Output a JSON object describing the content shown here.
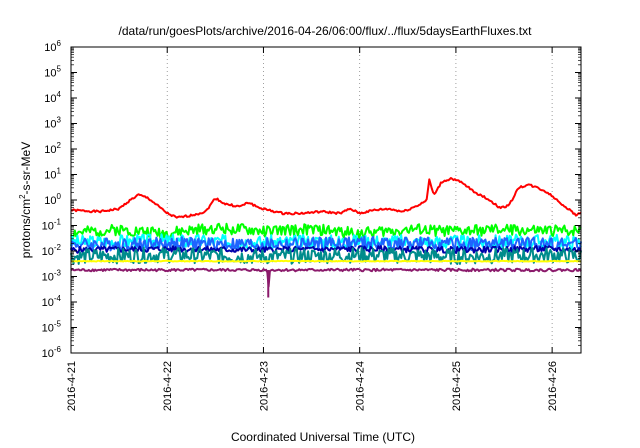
{
  "chart_data": {
    "type": "line",
    "title": "/data/run/goesPlots/archive/2016-04-26/06:00/flux/../flux/5daysEarthFluxes.txt",
    "xlabel": "Coordinated Universal Time (UTC)",
    "ylabel": "protons/cm²-s-sr-MeV",
    "ylabel_parts": {
      "pre": "protons/cm",
      "sup": "2",
      "post": "-s-sr-MeV"
    },
    "y_scale": "log",
    "ylim": [
      1e-06,
      1000000.0
    ],
    "xlim": [
      0,
      5.3
    ],
    "x_start_date": "2016-4-21",
    "grid": "vertical dotted lines at day boundaries",
    "y_ticks": [
      {
        "base": "10",
        "exp": "-6",
        "v": -6
      },
      {
        "base": "10",
        "exp": "-5",
        "v": -5
      },
      {
        "base": "10",
        "exp": "-4",
        "v": -4
      },
      {
        "base": "10",
        "exp": "-3",
        "v": -3
      },
      {
        "base": "10",
        "exp": "-2",
        "v": -2
      },
      {
        "base": "10",
        "exp": "-1",
        "v": -1
      },
      {
        "base": "10",
        "exp": "0",
        "v": 0
      },
      {
        "base": "10",
        "exp": "1",
        "v": 1
      },
      {
        "base": "10",
        "exp": "2",
        "v": 2
      },
      {
        "base": "10",
        "exp": "3",
        "v": 3
      },
      {
        "base": "10",
        "exp": "4",
        "v": 4
      },
      {
        "base": "10",
        "exp": "5",
        "v": 5
      },
      {
        "base": "10",
        "exp": "6",
        "v": 6
      }
    ],
    "x_ticks": [
      {
        "label": "2016-4-21",
        "d": 0
      },
      {
        "label": "2016-4-22",
        "d": 1
      },
      {
        "label": "2016-4-23",
        "d": 2
      },
      {
        "label": "2016-4-24",
        "d": 3
      },
      {
        "label": "2016-4-25",
        "d": 4
      },
      {
        "label": "2016-4-26",
        "d": 5
      }
    ],
    "series": [
      {
        "color": "#ff0000",
        "width": 2,
        "noise_amp": 0.04,
        "noise_seed": 1,
        "points": [
          [
            0,
            0.4
          ],
          [
            0.3,
            0.35
          ],
          [
            0.5,
            0.45
          ],
          [
            0.6,
            0.9
          ],
          [
            0.7,
            1.6
          ],
          [
            0.8,
            1.2
          ],
          [
            0.9,
            0.6
          ],
          [
            1.0,
            0.3
          ],
          [
            1.1,
            0.2
          ],
          [
            1.25,
            0.25
          ],
          [
            1.4,
            0.35
          ],
          [
            1.5,
            1.2
          ],
          [
            1.6,
            0.7
          ],
          [
            1.75,
            0.55
          ],
          [
            1.85,
            0.8
          ],
          [
            1.95,
            0.5
          ],
          [
            2.05,
            0.4
          ],
          [
            2.2,
            0.3
          ],
          [
            2.4,
            0.3
          ],
          [
            2.6,
            0.35
          ],
          [
            2.8,
            0.3
          ],
          [
            2.9,
            0.45
          ],
          [
            3.0,
            0.3
          ],
          [
            3.15,
            0.4
          ],
          [
            3.3,
            0.45
          ],
          [
            3.45,
            0.35
          ],
          [
            3.6,
            0.6
          ],
          [
            3.7,
            1.0
          ],
          [
            3.72,
            7.0
          ],
          [
            3.77,
            1.5
          ],
          [
            3.85,
            5.0
          ],
          [
            3.95,
            7.0
          ],
          [
            4.05,
            5.0
          ],
          [
            4.2,
            2.0
          ],
          [
            4.35,
            1.0
          ],
          [
            4.45,
            0.5
          ],
          [
            4.55,
            0.6
          ],
          [
            4.65,
            3.0
          ],
          [
            4.75,
            4.0
          ],
          [
            4.85,
            3.0
          ],
          [
            4.95,
            2.0
          ],
          [
            5.05,
            1.0
          ],
          [
            5.15,
            0.5
          ],
          [
            5.25,
            0.25
          ],
          [
            5.3,
            0.35
          ]
        ]
      },
      {
        "color": "#00ff00",
        "width": 2,
        "noise_amp": 0.22,
        "noise_seed": 2,
        "points": [
          [
            0,
            0.05
          ],
          [
            0.5,
            0.07
          ],
          [
            1.0,
            0.05
          ],
          [
            1.5,
            0.08
          ],
          [
            2.0,
            0.06
          ],
          [
            2.5,
            0.07
          ],
          [
            3.0,
            0.05
          ],
          [
            3.5,
            0.07
          ],
          [
            4.0,
            0.06
          ],
          [
            4.5,
            0.07
          ],
          [
            5.0,
            0.06
          ],
          [
            5.3,
            0.07
          ]
        ]
      },
      {
        "color": "#00ffff",
        "width": 2,
        "noise_amp": 0.28,
        "noise_seed": 3,
        "points": [
          [
            0,
            0.022
          ],
          [
            1.0,
            0.025
          ],
          [
            2.0,
            0.022
          ],
          [
            3.0,
            0.024
          ],
          [
            4.0,
            0.022
          ],
          [
            5.0,
            0.024
          ],
          [
            5.3,
            0.022
          ]
        ]
      },
      {
        "color": "#1e64ff",
        "width": 2,
        "noise_amp": 0.25,
        "noise_seed": 4,
        "points": [
          [
            0,
            0.018
          ],
          [
            1.0,
            0.02
          ],
          [
            2.0,
            0.018
          ],
          [
            3.0,
            0.021
          ],
          [
            4.0,
            0.019
          ],
          [
            5.0,
            0.02
          ],
          [
            5.3,
            0.018
          ]
        ]
      },
      {
        "color": "#0000aa",
        "width": 2,
        "noise_amp": 0.12,
        "noise_seed": 5,
        "points": [
          [
            0,
            0.011
          ],
          [
            1.0,
            0.012
          ],
          [
            2.0,
            0.011
          ],
          [
            3.0,
            0.012
          ],
          [
            4.0,
            0.011
          ],
          [
            5.0,
            0.012
          ],
          [
            5.3,
            0.011
          ]
        ]
      },
      {
        "color": "#008c8c",
        "width": 2,
        "noise_amp": 0.3,
        "noise_seed": 6,
        "points": [
          [
            0,
            0.006
          ],
          [
            1.0,
            0.007
          ],
          [
            2.0,
            0.006
          ],
          [
            3.0,
            0.007
          ],
          [
            4.0,
            0.006
          ],
          [
            5.0,
            0.007
          ],
          [
            5.3,
            0.006
          ]
        ]
      },
      {
        "color": "#ffff00",
        "width": 2,
        "noise_amp": 0.015,
        "noise_seed": 7,
        "points": [
          [
            0,
            0.004
          ],
          [
            5.3,
            0.004
          ]
        ]
      },
      {
        "color": "#8b1a6b",
        "width": 2,
        "noise_amp": 0.05,
        "noise_seed": 8,
        "points": [
          [
            0,
            0.0018
          ],
          [
            2.04,
            0.0018
          ],
          [
            2.05,
            0.00015
          ],
          [
            2.06,
            0.0018
          ],
          [
            5.3,
            0.0018
          ]
        ]
      }
    ]
  }
}
